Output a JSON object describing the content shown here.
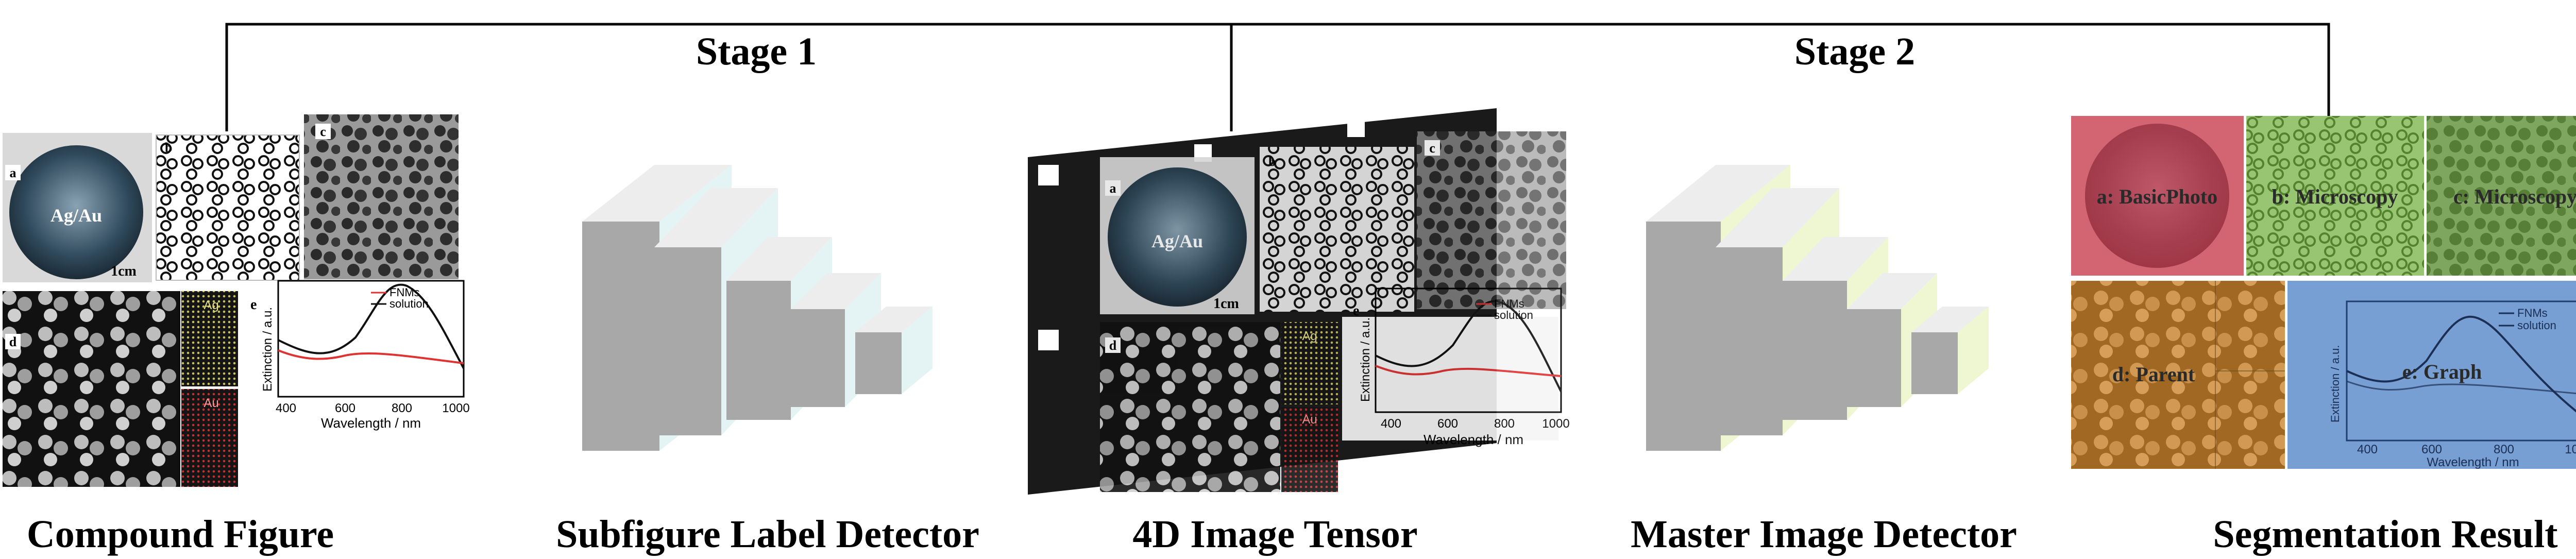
{
  "stages": {
    "stage1": "Stage 1",
    "stage2": "Stage 2"
  },
  "captions": {
    "compound": "Compound Figure",
    "label_detector": "Subfigure Label Detector",
    "tensor": "4D Image Tensor",
    "master_detector": "Master Image Detector",
    "segmentation": "Segmentation Result"
  },
  "panel_letters": {
    "a": "a",
    "b": "b",
    "c": "c",
    "d": "d",
    "e": "e"
  },
  "panel_texts": {
    "agau": "Ag/Au",
    "scale_1cm": "1cm",
    "ag": "Ag",
    "au": "Au"
  },
  "graph": {
    "ylabel": "Extinction / a.u.",
    "xlabel": "Wavelength / nm",
    "legend": [
      "FNMs",
      "solution"
    ],
    "ticks": [
      "400",
      "600",
      "800",
      "1000"
    ]
  },
  "segments": {
    "a": "a: BasicPhoto",
    "b": "b: Microscopy",
    "c": "c: Microscopy",
    "d": "d: Parent",
    "e": "e: Graph"
  },
  "colors": {
    "red": "#d23c4c",
    "green": "#6fae3c",
    "orange": "#d88a2a",
    "blue": "#4a7fc4",
    "box_face": "#a8a8a8",
    "box_side1": "#e4f3f4",
    "box_side2": "#eef6d2"
  }
}
